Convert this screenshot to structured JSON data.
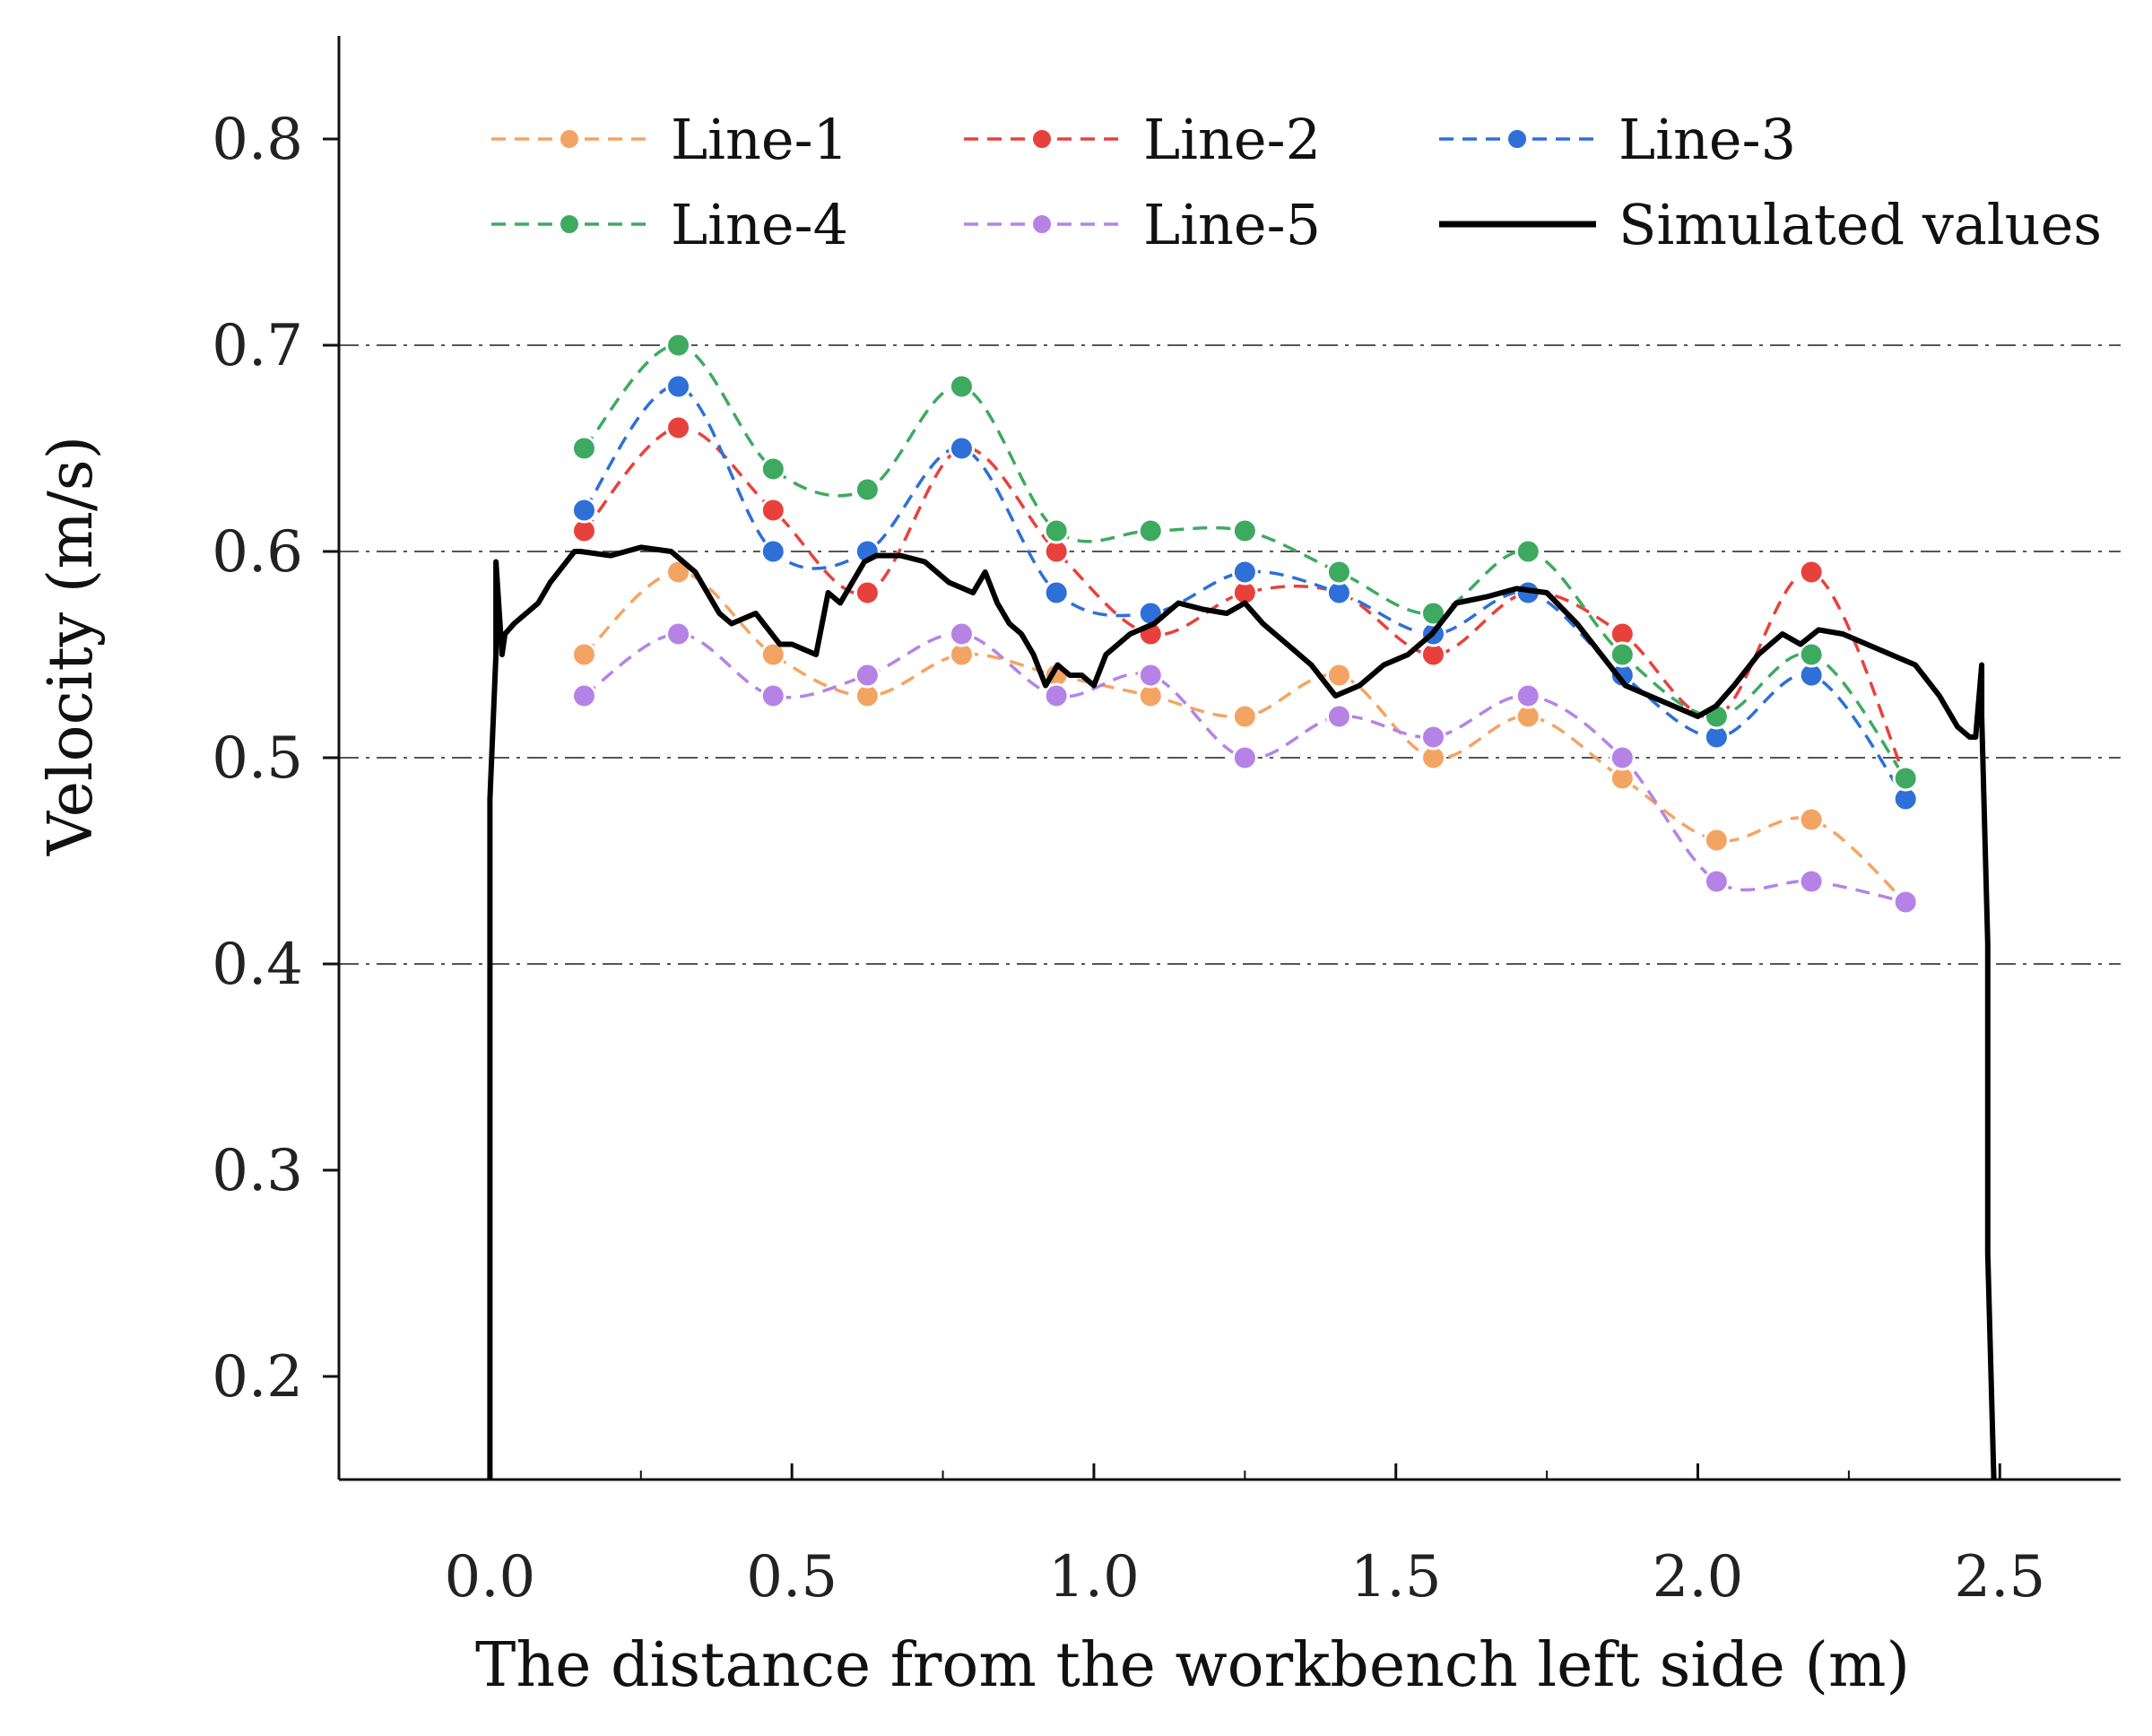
{
  "chart_data": {
    "type": "line",
    "title": "",
    "xlabel": "The distance from the workbench left side (m)",
    "ylabel": "Velocity (m/s)",
    "xlim": [
      -0.25,
      2.7
    ],
    "ylim": [
      0.15,
      0.85
    ],
    "xticks": [
      0.0,
      0.5,
      1.0,
      1.5,
      2.0,
      2.5
    ],
    "xtick_labels": [
      "0.0",
      "0.5",
      "1.0",
      "1.5",
      "2.0",
      "2.5"
    ],
    "yticks": [
      0.2,
      0.3,
      0.4,
      0.5,
      0.6,
      0.7,
      0.8
    ],
    "ytick_labels": [
      "0.2",
      "0.3",
      "0.4",
      "0.5",
      "0.6",
      "0.7",
      "0.8"
    ],
    "grid_y": [
      0.4,
      0.5,
      0.6,
      0.7
    ],
    "legend_position": "top",
    "x": [
      0.156,
      0.312,
      0.469,
      0.625,
      0.781,
      0.938,
      1.094,
      1.25,
      1.406,
      1.562,
      1.719,
      1.875,
      2.031,
      2.188,
      2.344
    ],
    "series": [
      {
        "name": "Line-1",
        "color": "#F4A462",
        "style": "dashed-markers",
        "values": [
          0.55,
          0.59,
          0.55,
          0.53,
          0.55,
          0.54,
          0.53,
          0.52,
          0.54,
          0.5,
          0.52,
          0.49,
          0.46,
          0.47,
          0.43
        ]
      },
      {
        "name": "Line-2",
        "color": "#E8413C",
        "style": "dashed-markers",
        "values": [
          0.61,
          0.66,
          0.62,
          0.58,
          0.65,
          0.6,
          0.56,
          0.58,
          0.58,
          0.55,
          0.58,
          0.56,
          0.52,
          0.59,
          0.49
        ]
      },
      {
        "name": "Line-3",
        "color": "#2E6FD8",
        "style": "dashed-markers",
        "values": [
          0.62,
          0.68,
          0.6,
          0.6,
          0.65,
          0.58,
          0.57,
          0.59,
          0.58,
          0.56,
          0.58,
          0.54,
          0.51,
          0.54,
          0.48
        ]
      },
      {
        "name": "Line-4",
        "color": "#3DAA60",
        "style": "dashed-markers",
        "values": [
          0.65,
          0.7,
          0.64,
          0.63,
          0.68,
          0.61,
          0.61,
          0.61,
          0.59,
          0.57,
          0.6,
          0.55,
          0.52,
          0.55,
          0.49
        ]
      },
      {
        "name": "Line-5",
        "color": "#B583E6",
        "style": "dashed-markers",
        "values": [
          0.53,
          0.56,
          0.53,
          0.54,
          0.56,
          0.53,
          0.54,
          0.5,
          0.52,
          0.51,
          0.53,
          0.5,
          0.44,
          0.44,
          0.43
        ]
      },
      {
        "name": "Simulated values",
        "color": "#000000",
        "style": "solid",
        "x": [
          0.0,
          0.0,
          0.01,
          0.01,
          0.02,
          0.025,
          0.04,
          0.08,
          0.1,
          0.14,
          0.15,
          0.2,
          0.25,
          0.3,
          0.34,
          0.38,
          0.4,
          0.44,
          0.48,
          0.5,
          0.54,
          0.56,
          0.58,
          0.6,
          0.62,
          0.64,
          0.68,
          0.72,
          0.76,
          0.8,
          0.82,
          0.84,
          0.86,
          0.88,
          0.9,
          0.92,
          0.94,
          0.96,
          0.98,
          1.0,
          1.02,
          1.06,
          1.1,
          1.14,
          1.18,
          1.22,
          1.25,
          1.28,
          1.32,
          1.36,
          1.4,
          1.44,
          1.48,
          1.52,
          1.56,
          1.6,
          1.65,
          1.7,
          1.75,
          1.8,
          1.84,
          1.88,
          1.92,
          1.96,
          2.0,
          2.03,
          2.06,
          2.1,
          2.14,
          2.17,
          2.2,
          2.24,
          2.28,
          2.32,
          2.36,
          2.4,
          2.43,
          2.45,
          2.46,
          2.47,
          2.47,
          2.48,
          2.48,
          2.49
        ],
        "values": [
          0.15,
          0.48,
          0.55,
          0.595,
          0.55,
          0.56,
          0.565,
          0.575,
          0.585,
          0.6,
          0.6,
          0.598,
          0.602,
          0.6,
          0.59,
          0.57,
          0.565,
          0.57,
          0.555,
          0.555,
          0.55,
          0.58,
          0.575,
          0.585,
          0.595,
          0.598,
          0.598,
          0.595,
          0.585,
          0.58,
          0.59,
          0.575,
          0.565,
          0.56,
          0.55,
          0.535,
          0.545,
          0.54,
          0.54,
          0.535,
          0.55,
          0.56,
          0.565,
          0.575,
          0.572,
          0.57,
          0.575,
          0.565,
          0.555,
          0.545,
          0.53,
          0.535,
          0.545,
          0.55,
          0.56,
          0.575,
          0.578,
          0.582,
          0.58,
          0.565,
          0.55,
          0.535,
          0.53,
          0.525,
          0.52,
          0.525,
          0.535,
          0.55,
          0.56,
          0.555,
          0.562,
          0.56,
          0.555,
          0.55,
          0.545,
          0.53,
          0.515,
          0.51,
          0.51,
          0.545,
          0.52,
          0.41,
          0.26,
          0.15
        ]
      }
    ]
  }
}
